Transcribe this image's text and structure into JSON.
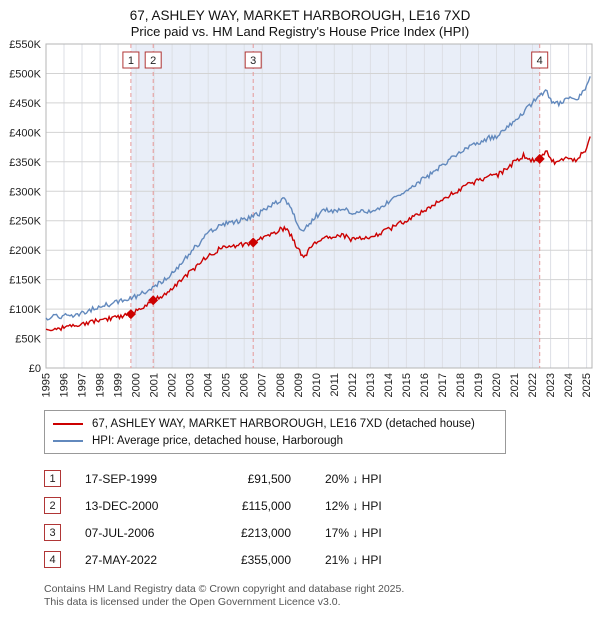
{
  "title": {
    "line1": "67, ASHLEY WAY, MARKET HARBOROUGH, LE16 7XD",
    "line2": "Price paid vs. HM Land Registry's House Price Index (HPI)"
  },
  "chart_data": {
    "type": "line",
    "x_range": [
      1995,
      2025.3
    ],
    "y_range": [
      0,
      550000
    ],
    "x_ticks": [
      1995,
      1996,
      1997,
      1998,
      1999,
      2000,
      2001,
      2002,
      2003,
      2004,
      2005,
      2006,
      2007,
      2008,
      2009,
      2010,
      2011,
      2012,
      2013,
      2014,
      2015,
      2016,
      2017,
      2018,
      2019,
      2020,
      2021,
      2022,
      2023,
      2024,
      2025
    ],
    "y_ticks": [
      0,
      50000,
      100000,
      150000,
      200000,
      250000,
      300000,
      350000,
      400000,
      450000,
      500000,
      550000
    ],
    "y_tick_labels": [
      "£0",
      "£50K",
      "£100K",
      "£150K",
      "£200K",
      "£250K",
      "£300K",
      "£350K",
      "£400K",
      "£450K",
      "£500K",
      "£550K"
    ],
    "grid": true,
    "legend_position": "bottom",
    "shaded_region": {
      "from": 1999.71,
      "to": 2022.4,
      "color": "#e9eef8"
    },
    "series": [
      {
        "name": "67, ASHLEY WAY, MARKET HARBOROUGH, LE16 7XD (detached house)",
        "color": "#cc0000",
        "points": [
          [
            1995,
            66000
          ],
          [
            1995.5,
            67000
          ],
          [
            1996,
            68000
          ],
          [
            1996.5,
            70000
          ],
          [
            1997,
            73000
          ],
          [
            1997.5,
            77000
          ],
          [
            1998,
            81000
          ],
          [
            1998.5,
            84000
          ],
          [
            1999,
            87000
          ],
          [
            1999.71,
            91500
          ],
          [
            2000,
            96000
          ],
          [
            2000.5,
            104000
          ],
          [
            2000.95,
            115000
          ],
          [
            2001.5,
            122000
          ],
          [
            2002,
            133000
          ],
          [
            2002.5,
            148000
          ],
          [
            2003,
            163000
          ],
          [
            2003.5,
            177000
          ],
          [
            2004,
            190000
          ],
          [
            2004.5,
            200000
          ],
          [
            2005,
            205000
          ],
          [
            2005.5,
            207000
          ],
          [
            2006,
            210000
          ],
          [
            2006.5,
            213000
          ],
          [
            2007,
            220000
          ],
          [
            2007.5,
            228000
          ],
          [
            2008,
            235000
          ],
          [
            2008.3,
            237000
          ],
          [
            2008.7,
            220000
          ],
          [
            2009,
            200000
          ],
          [
            2009.3,
            188000
          ],
          [
            2009.7,
            205000
          ],
          [
            2010,
            215000
          ],
          [
            2010.5,
            224000
          ],
          [
            2011,
            222000
          ],
          [
            2011.5,
            225000
          ],
          [
            2012,
            218000
          ],
          [
            2012.5,
            222000
          ],
          [
            2013,
            220000
          ],
          [
            2013.5,
            227000
          ],
          [
            2014,
            235000
          ],
          [
            2014.5,
            243000
          ],
          [
            2015,
            250000
          ],
          [
            2015.5,
            260000
          ],
          [
            2016,
            268000
          ],
          [
            2016.5,
            277000
          ],
          [
            2017,
            287000
          ],
          [
            2017.5,
            295000
          ],
          [
            2018,
            304000
          ],
          [
            2018.5,
            312000
          ],
          [
            2019,
            318000
          ],
          [
            2019.5,
            325000
          ],
          [
            2020,
            326000
          ],
          [
            2020.5,
            337000
          ],
          [
            2021,
            350000
          ],
          [
            2021.5,
            360000
          ],
          [
            2022,
            352000
          ],
          [
            2022.4,
            355000
          ],
          [
            2022.8,
            368000
          ],
          [
            2023,
            355000
          ],
          [
            2023.3,
            348000
          ],
          [
            2023.7,
            352000
          ],
          [
            2024,
            357000
          ],
          [
            2024.4,
            352000
          ],
          [
            2024.7,
            362000
          ],
          [
            2025,
            372000
          ],
          [
            2025.2,
            393000
          ]
        ]
      },
      {
        "name": "HPI: Average price, detached house, Harborough",
        "color": "#6289bd",
        "points": [
          [
            1995,
            85000
          ],
          [
            1995.5,
            87000
          ],
          [
            1996,
            88000
          ],
          [
            1996.5,
            90000
          ],
          [
            1997,
            94000
          ],
          [
            1997.5,
            99000
          ],
          [
            1998,
            104000
          ],
          [
            1998.5,
            108000
          ],
          [
            1999,
            112000
          ],
          [
            1999.5,
            115000
          ],
          [
            2000,
            122000
          ],
          [
            2000.5,
            130000
          ],
          [
            2001,
            138000
          ],
          [
            2001.5,
            148000
          ],
          [
            2002,
            160000
          ],
          [
            2002.5,
            178000
          ],
          [
            2003,
            196000
          ],
          [
            2003.5,
            212000
          ],
          [
            2004,
            228000
          ],
          [
            2004.5,
            240000
          ],
          [
            2005,
            246000
          ],
          [
            2005.5,
            248000
          ],
          [
            2006,
            252000
          ],
          [
            2006.5,
            257000
          ],
          [
            2007,
            265000
          ],
          [
            2007.5,
            275000
          ],
          [
            2008,
            284000
          ],
          [
            2008.3,
            286000
          ],
          [
            2008.7,
            265000
          ],
          [
            2009,
            242000
          ],
          [
            2009.3,
            235000
          ],
          [
            2009.7,
            248000
          ],
          [
            2010,
            258000
          ],
          [
            2010.5,
            268000
          ],
          [
            2011,
            266000
          ],
          [
            2011.5,
            270000
          ],
          [
            2012,
            262000
          ],
          [
            2012.5,
            266000
          ],
          [
            2013,
            264000
          ],
          [
            2013.5,
            272000
          ],
          [
            2014,
            282000
          ],
          [
            2014.5,
            292000
          ],
          [
            2015,
            300000
          ],
          [
            2015.5,
            312000
          ],
          [
            2016,
            322000
          ],
          [
            2016.5,
            332000
          ],
          [
            2017,
            345000
          ],
          [
            2017.5,
            355000
          ],
          [
            2018,
            365000
          ],
          [
            2018.5,
            375000
          ],
          [
            2019,
            382000
          ],
          [
            2019.5,
            390000
          ],
          [
            2020,
            392000
          ],
          [
            2020.5,
            405000
          ],
          [
            2021,
            420000
          ],
          [
            2021.5,
            435000
          ],
          [
            2022,
            450000
          ],
          [
            2022.4,
            462000
          ],
          [
            2022.8,
            470000
          ],
          [
            2023,
            455000
          ],
          [
            2023.3,
            448000
          ],
          [
            2023.7,
            452000
          ],
          [
            2024,
            458000
          ],
          [
            2024.4,
            452000
          ],
          [
            2024.7,
            465000
          ],
          [
            2025,
            478000
          ],
          [
            2025.2,
            495000
          ]
        ]
      }
    ],
    "markers": [
      {
        "label": "1",
        "x": 1999.71,
        "y": 91500
      },
      {
        "label": "2",
        "x": 2000.95,
        "y": 115000
      },
      {
        "label": "3",
        "x": 2006.5,
        "y": 213000
      },
      {
        "label": "4",
        "x": 2022.4,
        "y": 355000
      }
    ]
  },
  "legend": {
    "items": [
      {
        "label": "67, ASHLEY WAY, MARKET HARBOROUGH, LE16 7XD (detached house)",
        "color": "#cc0000"
      },
      {
        "label": "HPI: Average price, detached house, Harborough",
        "color": "#6289bd"
      }
    ]
  },
  "table": {
    "rows": [
      {
        "num": "1",
        "date": "17-SEP-1999",
        "price": "£91,500",
        "hpi": "20% ↓ HPI"
      },
      {
        "num": "2",
        "date": "13-DEC-2000",
        "price": "£115,000",
        "hpi": "12% ↓ HPI"
      },
      {
        "num": "3",
        "date": "07-JUL-2006",
        "price": "£213,000",
        "hpi": "17% ↓ HPI"
      },
      {
        "num": "4",
        "date": "27-MAY-2022",
        "price": "£355,000",
        "hpi": "21% ↓ HPI"
      }
    ]
  },
  "footer": {
    "line1": "Contains HM Land Registry data © Crown copyright and database right 2025.",
    "line2": "This data is licensed under the Open Government Licence v3.0."
  }
}
